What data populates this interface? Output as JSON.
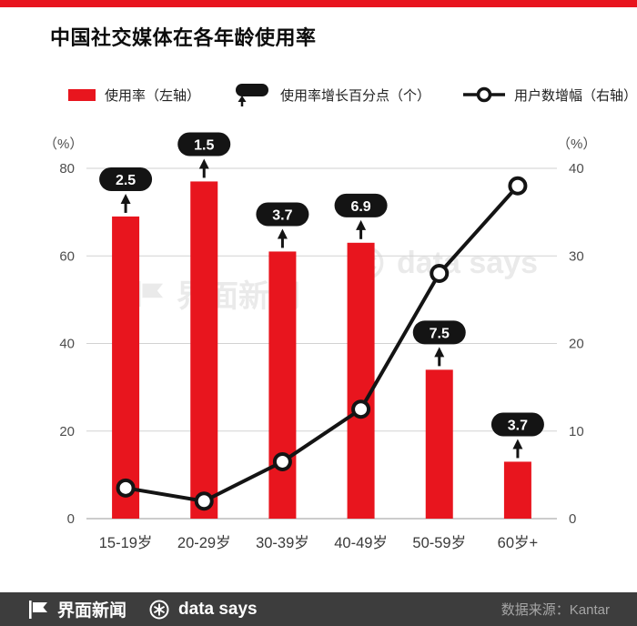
{
  "title": "中国社交媒体在各年龄使用率",
  "colors": {
    "red": "#e8151e",
    "black": "#141414",
    "grid": "#d2d2d2",
    "zero_line": "#9a9a9a",
    "footer_bg": "#3d3d3d",
    "source_text": "#a6a6a6",
    "tick_text": "#4d4d4d"
  },
  "legend": {
    "bar": "使用率（左轴）",
    "pill": "使用率增长百分点（个）",
    "line": "用户数增幅（右轴）"
  },
  "axes": {
    "left_unit": "（%）",
    "right_unit": "（%）",
    "left_ticks": [
      0,
      20,
      40,
      60,
      80
    ],
    "right_ticks": [
      0,
      10,
      20,
      30,
      40
    ]
  },
  "chart_data": {
    "type": "bar+line",
    "title": "中国社交媒体在各年龄使用率",
    "categories": [
      "15-19岁",
      "20-29岁",
      "30-39岁",
      "40-49岁",
      "50-59岁",
      "60岁+"
    ],
    "left_axis": {
      "label": "（%）",
      "range": [
        0,
        80
      ]
    },
    "right_axis": {
      "label": "（%）",
      "range": [
        0,
        40
      ]
    },
    "grid": true,
    "series": [
      {
        "name": "使用率（左轴）",
        "type": "bar",
        "axis": "left",
        "values": [
          69,
          77,
          61,
          63,
          34,
          13
        ]
      },
      {
        "name": "使用率增长百分点（个）",
        "type": "label",
        "values": [
          2.5,
          1.5,
          3.7,
          6.9,
          7.5,
          3.7
        ]
      },
      {
        "name": "用户数增幅（右轴）",
        "type": "line",
        "axis": "right",
        "values": [
          3.5,
          2,
          6.5,
          12.5,
          28,
          38
        ]
      }
    ]
  },
  "watermark": {
    "brand1": "界面新闻",
    "brand2": "data says"
  },
  "footer": {
    "brand1": "界面新闻",
    "brand2": "data says",
    "source": "数据来源：Kantar"
  }
}
